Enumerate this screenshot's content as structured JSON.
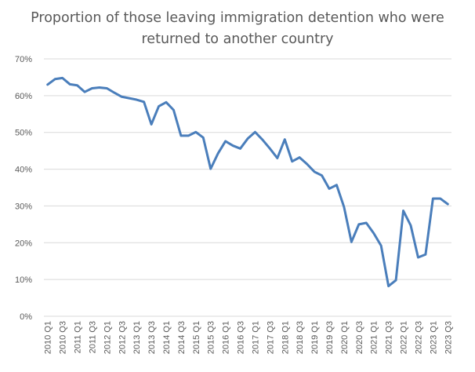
{
  "chart_data": {
    "type": "line",
    "title_lines": [
      "Proportion of those leaving immigration detention who were",
      "returned to another country"
    ],
    "xlabel": "",
    "ylabel": "",
    "ylim": [
      0,
      70
    ],
    "y_tick_labels": [
      "0%",
      "10%",
      "20%",
      "30%",
      "40%",
      "50%",
      "60%",
      "70%"
    ],
    "grid": true,
    "x": [
      "2010 Q1",
      "2010 Q2",
      "2010 Q3",
      "2010 Q4",
      "2011 Q1",
      "2011 Q2",
      "2011 Q3",
      "2011 Q4",
      "2012 Q1",
      "2012 Q2",
      "2012 Q3",
      "2012 Q4",
      "2013 Q1",
      "2013 Q2",
      "2013 Q3",
      "2013 Q4",
      "2014 Q1",
      "2014 Q2",
      "2014 Q3",
      "2014 Q4",
      "2015 Q1",
      "2015 Q2",
      "2015 Q3",
      "2015 Q4",
      "2016 Q1",
      "2016 Q2",
      "2016 Q3",
      "2016 Q4",
      "2017 Q1",
      "2017 Q2",
      "2017 Q3",
      "2017 Q4",
      "2018 Q1",
      "2018 Q2",
      "2018 Q3",
      "2018 Q4",
      "2019 Q1",
      "2019 Q2",
      "2019 Q3",
      "2019 Q4",
      "2020 Q1",
      "2020 Q2",
      "2020 Q3",
      "2020 Q4",
      "2021 Q1",
      "2021 Q2",
      "2021 Q3",
      "2021 Q4",
      "2022 Q1",
      "2022 Q2",
      "2022 Q3",
      "2022 Q4",
      "2023 Q1",
      "2023 Q2",
      "2023 Q3"
    ],
    "x_tick_labels": [
      "2010 Q1",
      "2010 Q3",
      "2011 Q1",
      "2011 Q3",
      "2012 Q1",
      "2012 Q3",
      "2013 Q1",
      "2013 Q3",
      "2014 Q1",
      "2014 Q3",
      "2015 Q1",
      "2015 Q3",
      "2016 Q1",
      "2016 Q3",
      "2017 Q1",
      "2017 Q3",
      "2018 Q1",
      "2018 Q3",
      "2019 Q1",
      "2019 Q3",
      "2020 Q1",
      "2020 Q3",
      "2021 Q1",
      "2021 Q3",
      "2022 Q1",
      "2022 Q3",
      "2023 Q1",
      "2023 Q3"
    ],
    "series": [
      {
        "color": "#4a7ebb",
        "values": [
          63.0,
          64.5,
          64.8,
          63.1,
          62.8,
          61.0,
          62.0,
          62.2,
          62.0,
          60.8,
          59.7,
          59.3,
          58.9,
          58.3,
          52.2,
          57.1,
          58.2,
          56.1,
          49.1,
          49.1,
          50.1,
          48.6,
          40.1,
          44.3,
          47.6,
          46.4,
          45.6,
          48.3,
          50.1,
          48.0,
          45.6,
          43.0,
          48.1,
          42.1,
          43.2,
          41.4,
          39.3,
          38.3,
          34.7,
          35.7,
          29.7,
          20.2,
          25.0,
          25.4,
          22.6,
          19.2,
          8.2,
          9.8,
          28.7,
          24.7,
          16.0,
          16.8,
          32.0,
          32.0,
          30.5
        ]
      }
    ]
  }
}
